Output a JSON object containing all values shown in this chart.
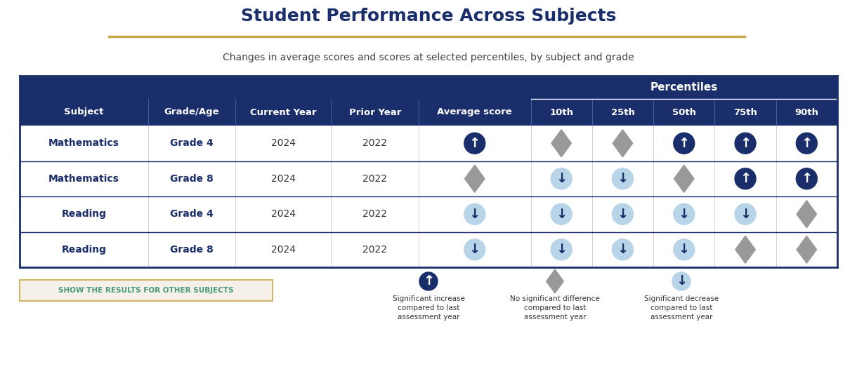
{
  "title": "Student Performance Across Subjects",
  "subtitle": "Changes in average scores and scores at selected percentiles, by subject and grade",
  "header_bg": "#1a2e6c",
  "header_text": "#ffffff",
  "border_color": "#1a2e6c",
  "gold_line_color": "#c8a84b",
  "col_headers": [
    "Subject",
    "Grade/Age",
    "Current Year",
    "Prior Year",
    "Average score",
    "10th",
    "25th",
    "50th",
    "75th",
    "90th"
  ],
  "percentile_header": "Percentiles",
  "rows": [
    {
      "subject": "Mathematics",
      "grade": "Grade 4",
      "current_year": "2024",
      "prior_year": "2022",
      "avg_score": "up_dark",
      "p10": "nochange_gray",
      "p25": "nochange_gray",
      "p50": "up_dark",
      "p75": "up_dark",
      "p90": "up_dark"
    },
    {
      "subject": "Mathematics",
      "grade": "Grade 8",
      "current_year": "2024",
      "prior_year": "2022",
      "avg_score": "nochange_gray",
      "p10": "down_light",
      "p25": "down_light",
      "p50": "nochange_gray",
      "p75": "up_dark",
      "p90": "up_dark"
    },
    {
      "subject": "Reading",
      "grade": "Grade 4",
      "current_year": "2024",
      "prior_year": "2022",
      "avg_score": "down_light",
      "p10": "down_light",
      "p25": "down_light",
      "p50": "down_light",
      "p75": "down_light",
      "p90": "nochange_gray"
    },
    {
      "subject": "Reading",
      "grade": "Grade 8",
      "current_year": "2024",
      "prior_year": "2022",
      "avg_score": "down_light",
      "p10": "down_light",
      "p25": "down_light",
      "p50": "down_light",
      "p75": "nochange_gray",
      "p90": "nochange_gray"
    }
  ],
  "legend": [
    {
      "type": "up_dark",
      "label": "Significant increase\ncompared to last\nassessment year"
    },
    {
      "type": "nochange_gray",
      "label": "No significant difference\ncompared to last\nassessment year"
    },
    {
      "type": "down_light",
      "label": "Significant decrease\ncompared to last\nassessment year"
    }
  ],
  "show_button_text": "SHOW THE RESULTS FOR OTHER SUBJECTS",
  "bg_color": "#ffffff",
  "title_color": "#1a2e6c",
  "subtitle_color": "#444444",
  "dark_circle_color": "#1a2e6c",
  "light_circle_color": "#b8d4e8",
  "gray_diamond_color": "#999999",
  "up_arrow_char": "↑",
  "down_arrow_char": "↓"
}
